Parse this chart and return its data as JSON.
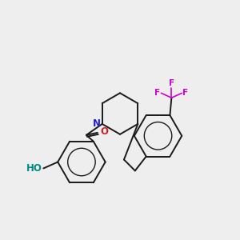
{
  "background_color": "#eeeeee",
  "bond_color": "#1a1a1a",
  "nitrogen_color": "#2222cc",
  "oxygen_color": "#cc2222",
  "fluorine_color": "#cc00cc",
  "hydroxyl_color": "#008888",
  "ho_label": "HO",
  "o_label": "O",
  "n_label": "N",
  "f_label": "F",
  "scale": 1.0
}
